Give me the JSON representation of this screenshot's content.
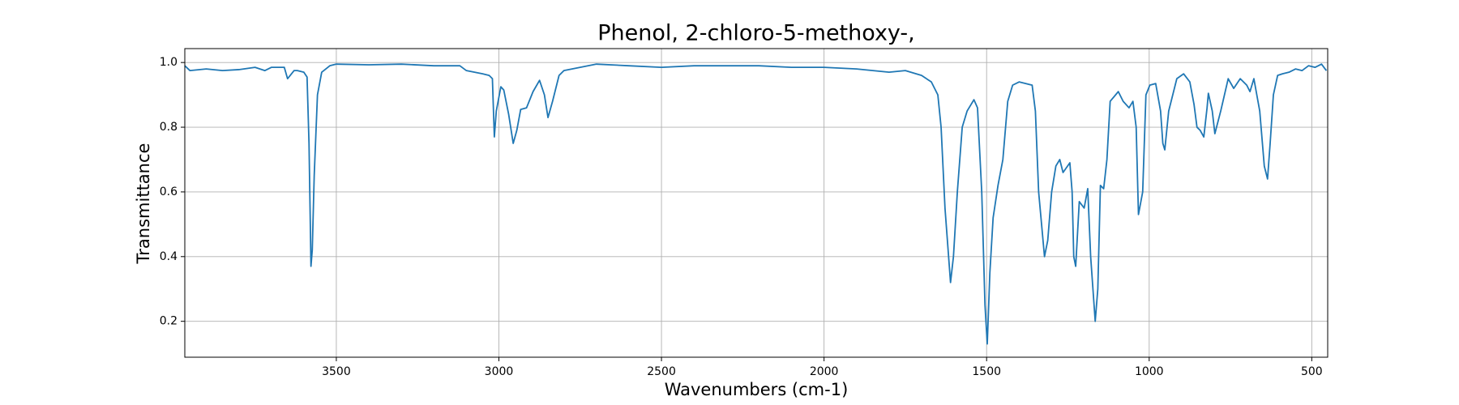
{
  "chart_data": {
    "type": "line",
    "title": "Phenol, 2-chloro-5-methoxy-,",
    "x_label": "Wavenumbers (cm-1)",
    "y_label": "Transmittance",
    "xlim": [
      3966,
      451
    ],
    "ylim": [
      0.089,
      1.043
    ],
    "xticks": [
      3500,
      3000,
      2500,
      2000,
      1500,
      1000,
      500
    ],
    "yticks": [
      0.2,
      0.4,
      0.6,
      0.8,
      {
        "value": 1,
        "label": "1.0"
      }
    ],
    "grid": true,
    "series": [
      {
        "color": "#1f77b4",
        "x": [
          3966,
          3950,
          3900,
          3850,
          3800,
          3750,
          3720,
          3700,
          3660,
          3650,
          3630,
          3620,
          3600,
          3590,
          3584,
          3580,
          3578,
          3574,
          3568,
          3558,
          3545,
          3520,
          3500,
          3400,
          3300,
          3200,
          3150,
          3120,
          3100,
          3050,
          3030,
          3020,
          3014,
          3008,
          2994,
          2985,
          2970,
          2956,
          2945,
          2933,
          2915,
          2895,
          2875,
          2860,
          2849,
          2835,
          2815,
          2800,
          2750,
          2700,
          2600,
          2500,
          2400,
          2300,
          2200,
          2100,
          2000,
          1900,
          1800,
          1750,
          1700,
          1670,
          1650,
          1640,
          1628,
          1611,
          1602,
          1590,
          1575,
          1560,
          1539,
          1528,
          1515,
          1505,
          1498,
          1490,
          1480,
          1465,
          1450,
          1435,
          1420,
          1400,
          1380,
          1360,
          1350,
          1340,
          1322,
          1312,
          1300,
          1287,
          1275,
          1265,
          1244,
          1237,
          1232,
          1226,
          1215,
          1200,
          1189,
          1180,
          1166,
          1158,
          1150,
          1140,
          1130,
          1120,
          1095,
          1080,
          1062,
          1050,
          1040,
          1033,
          1020,
          1010,
          998,
          980,
          965,
          958,
          952,
          940,
          915,
          894,
          875,
          862,
          853,
          843,
          832,
          822,
          818,
          806,
          798,
          780,
          757,
          740,
          720,
          700,
          690,
          678,
          660,
          646,
          636,
          628,
          618,
          605,
          590,
          570,
          550,
          530,
          510,
          490,
          470,
          455
        ],
        "values": [
          0.99,
          0.975,
          0.98,
          0.975,
          0.978,
          0.985,
          0.975,
          0.985,
          0.985,
          0.95,
          0.975,
          0.975,
          0.97,
          0.955,
          0.75,
          0.5,
          0.37,
          0.42,
          0.65,
          0.9,
          0.97,
          0.99,
          0.995,
          0.993,
          0.995,
          0.99,
          0.99,
          0.99,
          0.975,
          0.965,
          0.96,
          0.95,
          0.77,
          0.85,
          0.925,
          0.915,
          0.84,
          0.75,
          0.79,
          0.855,
          0.86,
          0.91,
          0.945,
          0.9,
          0.83,
          0.88,
          0.96,
          0.975,
          0.985,
          0.995,
          0.99,
          0.985,
          0.99,
          0.99,
          0.99,
          0.985,
          0.985,
          0.98,
          0.97,
          0.975,
          0.96,
          0.94,
          0.9,
          0.8,
          0.55,
          0.32,
          0.4,
          0.6,
          0.8,
          0.85,
          0.885,
          0.86,
          0.6,
          0.25,
          0.13,
          0.35,
          0.52,
          0.62,
          0.7,
          0.88,
          0.93,
          0.94,
          0.935,
          0.93,
          0.85,
          0.6,
          0.4,
          0.45,
          0.6,
          0.68,
          0.7,
          0.66,
          0.69,
          0.6,
          0.4,
          0.37,
          0.57,
          0.55,
          0.61,
          0.4,
          0.2,
          0.3,
          0.62,
          0.61,
          0.7,
          0.88,
          0.91,
          0.88,
          0.86,
          0.88,
          0.8,
          0.53,
          0.6,
          0.9,
          0.93,
          0.935,
          0.85,
          0.75,
          0.73,
          0.85,
          0.95,
          0.965,
          0.94,
          0.87,
          0.8,
          0.79,
          0.77,
          0.86,
          0.905,
          0.85,
          0.78,
          0.85,
          0.95,
          0.92,
          0.95,
          0.93,
          0.91,
          0.95,
          0.85,
          0.68,
          0.64,
          0.75,
          0.9,
          0.96,
          0.965,
          0.97,
          0.98,
          0.975,
          0.99,
          0.985,
          0.995,
          0.975
        ]
      }
    ]
  }
}
